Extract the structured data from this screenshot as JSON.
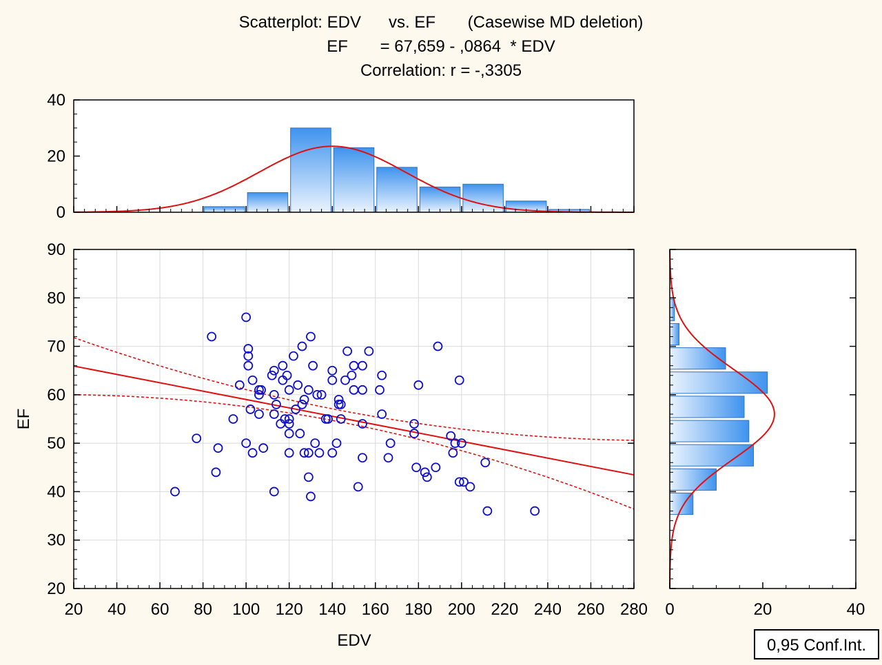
{
  "colors": {
    "background": "#FEF9EE",
    "marker": "#1010CC",
    "fit_line": "#E01010",
    "hist_top": "#3F93EE",
    "hist_bottom": "#EAF3FE",
    "hist_stroke": "#2E74C8"
  },
  "chart_data": [
    {
      "type": "scatter",
      "title": "Scatterplot: EDV      vs. EF       (Casewise MD deletion)",
      "subtitle": "EF       = 67,659 - ,0864  * EDV",
      "correlation_text": "Correlation: r = -,3305",
      "xlabel": "EDV",
      "ylabel": "EF",
      "xlim": [
        20,
        280
      ],
      "ylim": [
        20,
        90
      ],
      "x_ticks": [
        "20",
        "40",
        "60",
        "80",
        "100",
        "120",
        "140",
        "160",
        "180",
        "200",
        "220",
        "240",
        "260",
        "280"
      ],
      "y_ticks": [
        "20",
        "30",
        "40",
        "50",
        "60",
        "70",
        "80",
        "90"
      ],
      "grid": true,
      "marker": "open-circle",
      "regression": {
        "intercept": 67.659,
        "slope": -0.0864
      },
      "confidence_band": {
        "label": "0,95 Conf.Int.",
        "upper": [
          [
            20,
            71.8
          ],
          [
            140,
            57.1
          ],
          [
            280,
            50.6
          ]
        ],
        "lower": [
          [
            20,
            60.0
          ],
          [
            140,
            54.7
          ],
          [
            280,
            36.4
          ]
        ]
      },
      "points": [
        [
          67,
          40
        ],
        [
          77,
          51
        ],
        [
          84,
          72
        ],
        [
          86,
          44
        ],
        [
          87,
          49
        ],
        [
          94,
          55
        ],
        [
          97,
          62
        ],
        [
          100,
          76
        ],
        [
          100,
          50
        ],
        [
          101,
          68
        ],
        [
          101,
          66
        ],
        [
          101,
          69.5
        ],
        [
          102,
          57
        ],
        [
          103,
          63
        ],
        [
          103,
          48
        ],
        [
          106,
          60
        ],
        [
          106,
          56
        ],
        [
          106,
          61
        ],
        [
          107,
          61
        ],
        [
          108,
          49
        ],
        [
          112,
          64
        ],
        [
          113,
          65
        ],
        [
          113,
          60
        ],
        [
          113,
          56
        ],
        [
          113,
          40
        ],
        [
          114,
          58
        ],
        [
          116,
          54
        ],
        [
          117,
          63
        ],
        [
          117,
          66
        ],
        [
          118,
          55
        ],
        [
          119,
          64
        ],
        [
          120,
          55
        ],
        [
          120,
          52
        ],
        [
          120,
          48
        ],
        [
          120,
          61
        ],
        [
          120,
          54
        ],
        [
          122,
          68
        ],
        [
          123,
          57
        ],
        [
          124,
          62
        ],
        [
          125,
          52
        ],
        [
          126,
          58
        ],
        [
          126,
          70
        ],
        [
          127,
          59
        ],
        [
          127,
          48
        ],
        [
          129,
          43
        ],
        [
          129,
          48
        ],
        [
          129,
          61
        ],
        [
          130,
          39
        ],
        [
          130,
          72
        ],
        [
          131,
          66
        ],
        [
          132,
          50
        ],
        [
          133,
          60
        ],
        [
          134,
          48
        ],
        [
          135,
          60
        ],
        [
          137,
          55
        ],
        [
          138,
          55
        ],
        [
          140,
          48
        ],
        [
          140,
          63
        ],
        [
          140,
          65
        ],
        [
          142,
          50
        ],
        [
          143,
          58
        ],
        [
          143,
          59
        ],
        [
          144,
          55
        ],
        [
          144,
          58
        ],
        [
          146,
          63
        ],
        [
          147,
          69
        ],
        [
          149,
          64
        ],
        [
          150,
          61
        ],
        [
          150,
          66
        ],
        [
          152,
          41
        ],
        [
          154,
          61
        ],
        [
          154,
          66
        ],
        [
          154,
          54
        ],
        [
          154,
          47
        ],
        [
          157,
          69
        ],
        [
          162,
          61
        ],
        [
          163,
          64
        ],
        [
          163,
          56
        ],
        [
          166,
          47
        ],
        [
          167,
          50
        ],
        [
          178,
          54
        ],
        [
          178,
          52
        ],
        [
          179,
          45
        ],
        [
          180,
          62
        ],
        [
          183,
          44
        ],
        [
          184,
          43
        ],
        [
          188,
          45
        ],
        [
          189,
          70
        ],
        [
          195,
          51.5
        ],
        [
          196,
          48
        ],
        [
          197,
          50
        ],
        [
          199,
          63
        ],
        [
          199,
          42
        ],
        [
          200,
          50
        ],
        [
          201,
          42
        ],
        [
          204,
          41
        ],
        [
          211,
          46
        ],
        [
          212,
          36
        ],
        [
          234,
          36
        ]
      ]
    },
    {
      "type": "bar",
      "title": "",
      "orientation": "vertical",
      "axis": "EDV histogram",
      "bin_edges": [
        20,
        40,
        60,
        80,
        100,
        120,
        140,
        160,
        180,
        200,
        220,
        240,
        260,
        280
      ],
      "values": [
        0,
        0,
        0,
        2,
        7,
        30,
        23,
        16,
        9,
        10,
        4,
        1,
        0
      ],
      "ylim": [
        0,
        40
      ],
      "y_ticks": [
        "0",
        "20",
        "40"
      ],
      "normal_curve": {
        "mean": 140,
        "sd": 34,
        "peak": 23.5
      }
    },
    {
      "type": "bar",
      "title": "",
      "orientation": "horizontal",
      "axis": "EF histogram",
      "bin_edges": [
        35,
        40,
        45,
        50,
        55,
        60,
        65,
        70,
        75,
        80
      ],
      "values": [
        5,
        10,
        18,
        17,
        16,
        21,
        12,
        2,
        1
      ],
      "xlim": [
        0,
        40
      ],
      "x_ticks": [
        "0",
        "20",
        "40"
      ],
      "normal_curve": {
        "mean": 56,
        "sd": 9.3,
        "peak": 22.5
      }
    }
  ]
}
